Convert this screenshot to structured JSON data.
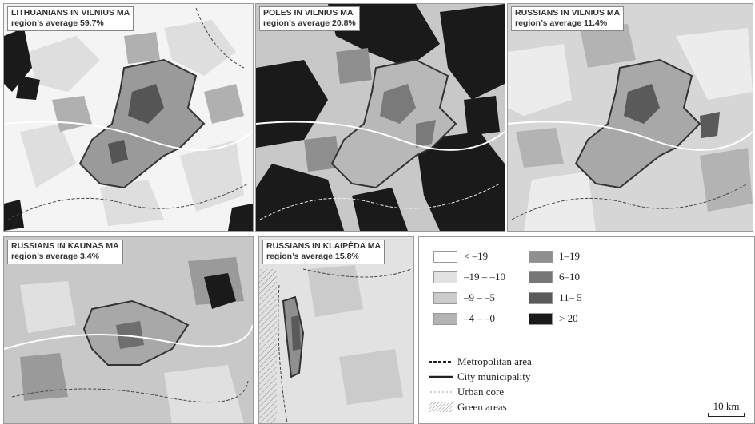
{
  "panels": [
    {
      "title": "LITHUANIANS IN VILNIUS MA",
      "avg": "region’s average 59.7%",
      "base": "#f2f2f2"
    },
    {
      "title": "POLES IN VILNIUS MA",
      "avg": "region’s average 20.8%",
      "base": "#c8c8c8"
    },
    {
      "title": "RUSSIANS IN VILNIUS MA",
      "avg": "region’s average 11.4%",
      "base": "#dadada"
    },
    {
      "title": "RUSSIANS IN KAUNAS MA",
      "avg": "region’s average 3.4%",
      "base": "#c9c9c9"
    },
    {
      "title": "RUSSIANS IN KLAIPĖDA MA",
      "avg": "region’s average 15.8%",
      "base": "#e4e4e4"
    }
  ],
  "legend": {
    "classes": [
      {
        "label": "< –19",
        "color": "#ffffff"
      },
      {
        "label": "–19 – –10",
        "color": "#e2e2e2"
      },
      {
        "label": "–9 – –5",
        "color": "#cbcbcb"
      },
      {
        "label": "–4 – –0",
        "color": "#b3b3b3"
      },
      {
        "label": "1–19",
        "color": "#8f8f8f"
      },
      {
        "label": "6–10",
        "color": "#767676"
      },
      {
        "label": "11– 5",
        "color": "#5a5a5a"
      },
      {
        "label": "> 20",
        "color": "#1a1a1a"
      }
    ],
    "lines": [
      {
        "label": "Metropolitan area"
      },
      {
        "label": "City municipality"
      },
      {
        "label": "Urban core"
      },
      {
        "label": "Green areas"
      }
    ],
    "scale": "10 km"
  }
}
